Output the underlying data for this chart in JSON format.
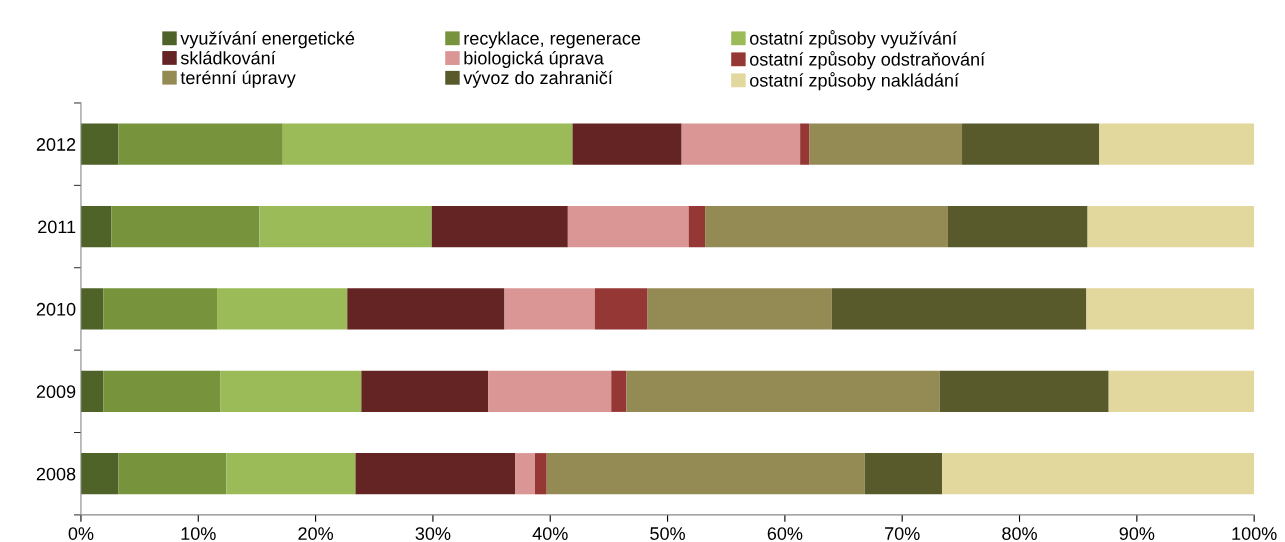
{
  "chart_data": {
    "type": "bar",
    "orientation": "horizontal",
    "stacked": true,
    "categories": [
      "2012",
      "2011",
      "2010",
      "2009",
      "2008"
    ],
    "xlim": [
      0,
      1
    ],
    "xticks": [
      {
        "value": 0,
        "label": "0%"
      },
      {
        "value": 0.1,
        "label": "10%"
      },
      {
        "value": 0.2,
        "label": "20%"
      },
      {
        "value": 0.3,
        "label": "30%"
      },
      {
        "value": 0.4,
        "label": "40%"
      },
      {
        "value": 0.5,
        "label": "50%"
      },
      {
        "value": 0.6,
        "label": "60%"
      },
      {
        "value": 0.7,
        "label": "70%"
      },
      {
        "value": 0.8,
        "label": "80%"
      },
      {
        "value": 0.9,
        "label": "90%"
      },
      {
        "value": 1,
        "label": "100%"
      }
    ],
    "grid": false,
    "legend": "top",
    "series": [
      {
        "name": "využívání energetické",
        "color": "#4f6228",
        "values": [
          0.032,
          0.026,
          0.019,
          0.019,
          0.032
        ]
      },
      {
        "name": "recyklace, regenerace",
        "color": "#77933c",
        "values": [
          0.14,
          0.126,
          0.097,
          0.1,
          0.092
        ]
      },
      {
        "name": "ostatní způsoby využívání",
        "color": "#9bbb59",
        "values": [
          0.247,
          0.147,
          0.111,
          0.12,
          0.11
        ]
      },
      {
        "name": "skládkování",
        "color": "#632423",
        "values": [
          0.093,
          0.116,
          0.134,
          0.108,
          0.136
        ]
      },
      {
        "name": "biologická úprava",
        "color": "#d99694",
        "values": [
          0.101,
          0.103,
          0.077,
          0.105,
          0.017
        ]
      },
      {
        "name": "ostatní způsoby odstraňování",
        "color": "#953735",
        "values": [
          0.008,
          0.014,
          0.045,
          0.013,
          0.01
        ]
      },
      {
        "name": "terénní úpravy",
        "color": "#948a54",
        "values": [
          0.13,
          0.207,
          0.157,
          0.267,
          0.271
        ]
      },
      {
        "name": "vývoz do zahraničí",
        "color": "#595a2b",
        "values": [
          0.117,
          0.119,
          0.217,
          0.144,
          0.066
        ]
      },
      {
        "name": "ostatní způsoby nakládání",
        "color": "#e2d79c",
        "values": [
          0.132,
          0.142,
          0.143,
          0.124,
          0.266
        ]
      }
    ]
  }
}
